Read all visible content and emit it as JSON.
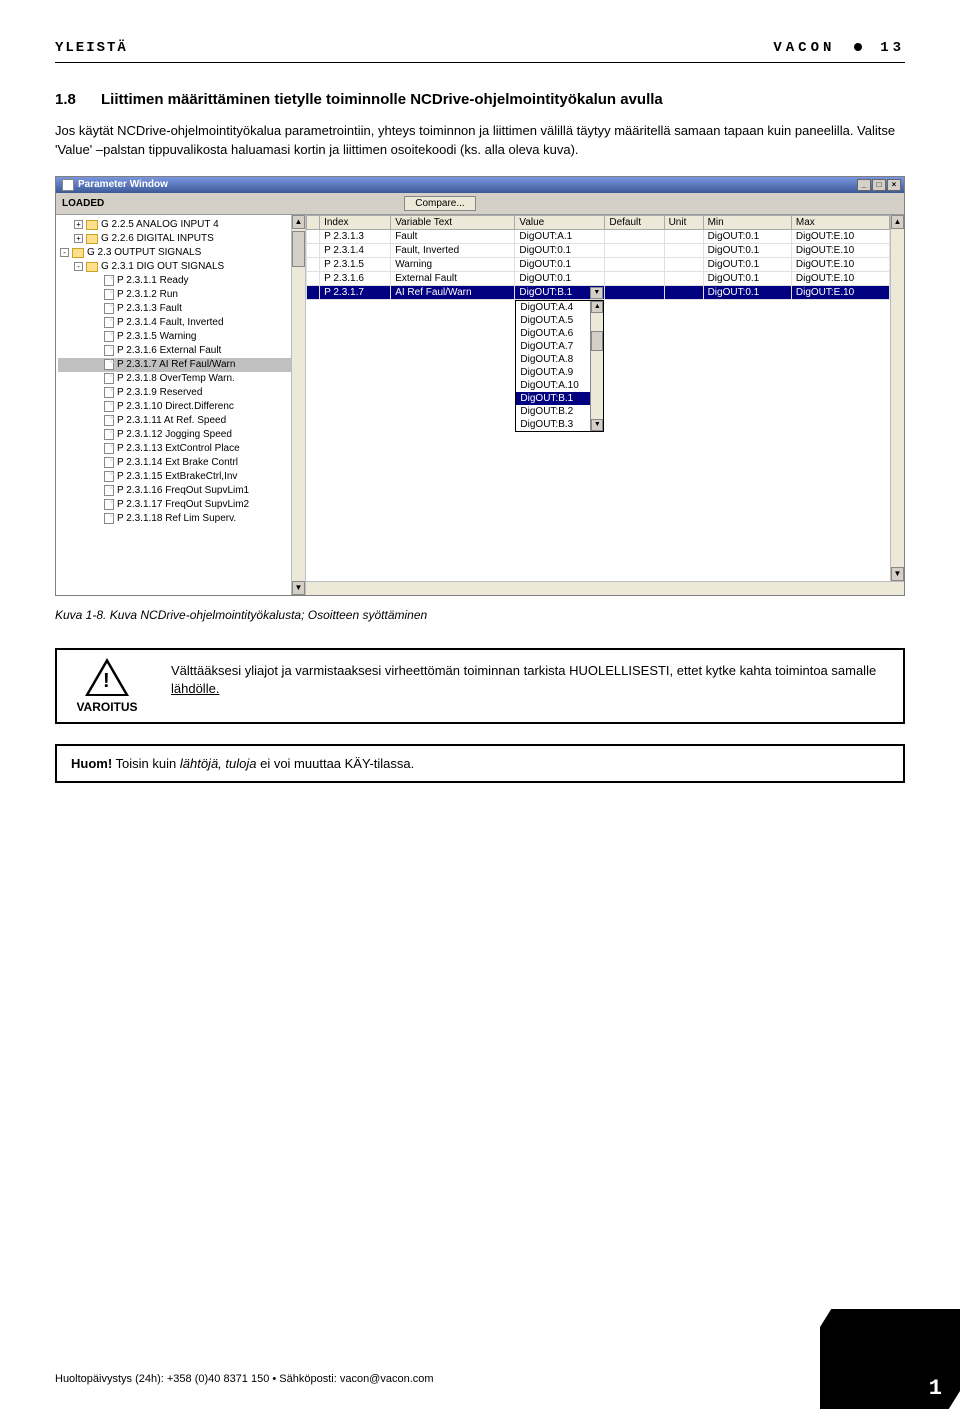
{
  "header": {
    "left": "YLEISTÄ",
    "brand": "VACON",
    "page_head": "13"
  },
  "section": {
    "num": "1.8",
    "title": "Liittimen määrittäminen tietylle toiminnolle NCDrive-ohjelmointityökalun avulla",
    "para": "Jos käytät NCDrive-ohjelmointityökalua parametrointiin, yhteys toiminnon ja liittimen välillä täytyy määritellä samaan tapaan kuin paneelilla. Valitse 'Value' –palstan tippuvalikosta haluamasi kortin ja liittimen osoitekoodi (ks. alla oleva kuva)."
  },
  "window": {
    "title": "Parameter Window",
    "status": "LOADED",
    "compare": "Compare...",
    "tree": [
      {
        "lvl": 1,
        "exp": "+",
        "ico": "folder",
        "label": "G 2.2.5 ANALOG INPUT 4"
      },
      {
        "lvl": 1,
        "exp": "+",
        "ico": "folder",
        "label": "G 2.2.6 DIGITAL INPUTS"
      },
      {
        "lvl": 0,
        "exp": "-",
        "ico": "folder",
        "label": "G 2.3 OUTPUT SIGNALS"
      },
      {
        "lvl": 1,
        "exp": "-",
        "ico": "folder",
        "label": "G 2.3.1 DIG OUT SIGNALS"
      },
      {
        "lvl": 2,
        "ico": "doc",
        "label": "P 2.3.1.1 Ready"
      },
      {
        "lvl": 2,
        "ico": "doc",
        "label": "P 2.3.1.2 Run"
      },
      {
        "lvl": 2,
        "ico": "doc",
        "label": "P 2.3.1.3 Fault"
      },
      {
        "lvl": 2,
        "ico": "doc",
        "label": "P 2.3.1.4 Fault, Inverted"
      },
      {
        "lvl": 2,
        "ico": "doc",
        "label": "P 2.3.1.5 Warning"
      },
      {
        "lvl": 2,
        "ico": "doc",
        "label": "P 2.3.1.6 External Fault"
      },
      {
        "lvl": 2,
        "ico": "doc",
        "label": "P 2.3.1.7 AI Ref Faul/Warn",
        "sel": true
      },
      {
        "lvl": 2,
        "ico": "doc",
        "label": "P 2.3.1.8 OverTemp Warn."
      },
      {
        "lvl": 2,
        "ico": "doc",
        "label": "P 2.3.1.9 Reserved"
      },
      {
        "lvl": 2,
        "ico": "doc",
        "label": "P 2.3.1.10 Direct.Differenc"
      },
      {
        "lvl": 2,
        "ico": "doc",
        "label": "P 2.3.1.11 At Ref. Speed"
      },
      {
        "lvl": 2,
        "ico": "doc",
        "label": "P 2.3.1.12 Jogging Speed"
      },
      {
        "lvl": 2,
        "ico": "doc",
        "label": "P 2.3.1.13 ExtControl Place"
      },
      {
        "lvl": 2,
        "ico": "doc",
        "label": "P 2.3.1.14 Ext Brake Contrl"
      },
      {
        "lvl": 2,
        "ico": "doc",
        "label": "P 2.3.1.15 ExtBrakeCtrl,Inv"
      },
      {
        "lvl": 2,
        "ico": "doc",
        "label": "P 2.3.1.16 FreqOut SupvLim1"
      },
      {
        "lvl": 2,
        "ico": "doc",
        "label": "P 2.3.1.17 FreqOut SupvLim2"
      },
      {
        "lvl": 2,
        "ico": "doc",
        "label": "P 2.3.1.18 Ref Lim Superv."
      }
    ],
    "columns": [
      "",
      "Index",
      "Variable Text",
      "Value",
      "Default",
      "Unit",
      "Min",
      "Max"
    ],
    "rows": [
      {
        "idx": "P 2.3.1.3",
        "txt": "Fault",
        "val": "DigOUT:A.1",
        "def": "",
        "unit": "",
        "min": "DigOUT:0.1",
        "max": "DigOUT:E.10"
      },
      {
        "idx": "P 2.3.1.4",
        "txt": "Fault, Inverted",
        "val": "DigOUT:0.1",
        "def": "",
        "unit": "",
        "min": "DigOUT:0.1",
        "max": "DigOUT:E.10"
      },
      {
        "idx": "P 2.3.1.5",
        "txt": "Warning",
        "val": "DigOUT:0.1",
        "def": "",
        "unit": "",
        "min": "DigOUT:0.1",
        "max": "DigOUT:E.10"
      },
      {
        "idx": "P 2.3.1.6",
        "txt": "External Fault",
        "val": "DigOUT:0.1",
        "def": "",
        "unit": "",
        "min": "DigOUT:0.1",
        "max": "DigOUT:E.10"
      },
      {
        "idx": "P 2.3.1.7",
        "txt": "AI Ref Faul/Warn",
        "val": "DigOUT:B.1",
        "def": "",
        "unit": "",
        "min": "DigOUT:0.1",
        "max": "DigOUT:E.10",
        "hl": true,
        "dd": true
      }
    ],
    "dropdown": [
      "DigOUT:A.4",
      "DigOUT:A.5",
      "DigOUT:A.6",
      "DigOUT:A.7",
      "DigOUT:A.8",
      "DigOUT:A.9",
      "DigOUT:A.10",
      "DigOUT:B.1",
      "DigOUT:B.2",
      "DigOUT:B.3"
    ],
    "dropdown_sel": 7
  },
  "caption": "Kuva 1-8. Kuva NCDrive-ohjelmointityökalusta; Osoitteen syöttäminen",
  "warning": {
    "label": "VAROITUS",
    "text_a": "Välttääksesi yliajot ja varmistaaksesi virheettömän toiminnan tarkista HUOLELLISESTI, ettet kytke kahta toimintoa samalle ",
    "text_u": "lähdölle.",
    "text_b": ""
  },
  "note": {
    "prefix": "Huom!",
    "a": " Toisin kuin ",
    "i1": "lähtöjä,",
    "mid": " ",
    "i2": "tuloja",
    "b": " ei voi muuttaa KÄY-tilassa."
  },
  "footer": "Huoltopäivystys (24h): +358 (0)40 8371 150 • Sähköposti: vacon@vacon.com",
  "page_num": "1"
}
